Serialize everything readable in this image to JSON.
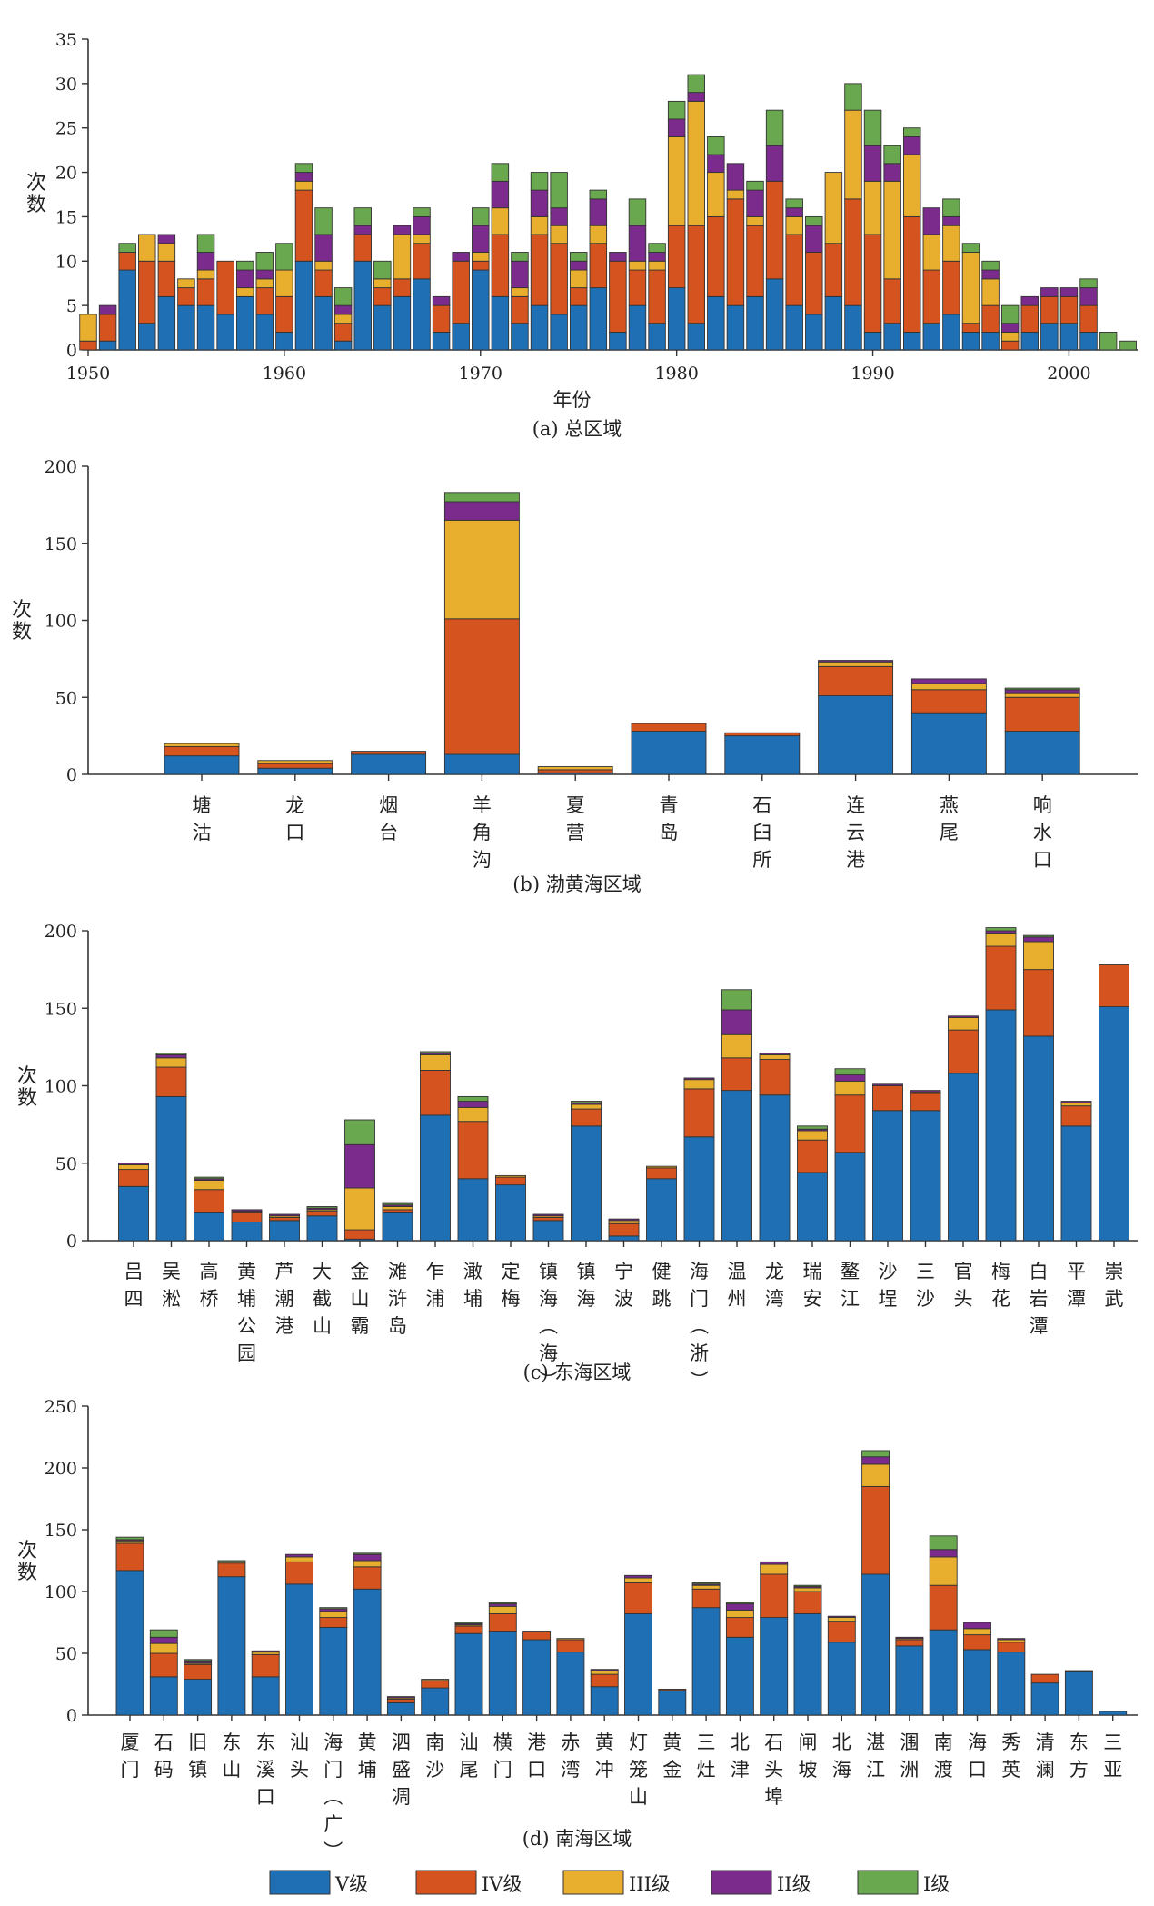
{
  "levels": [
    "V级",
    "IV级",
    "III级",
    "II级",
    "I级"
  ],
  "colors": {
    "V级": "#1f6fb5",
    "IV级": "#d4531e",
    "III级": "#e8ae2e",
    "II级": "#7a2b8c",
    "I级": "#6aa84f"
  },
  "chart_data": [
    {
      "type": "bar",
      "stacked": true,
      "title": "(a) 总区域",
      "xlabel": "年份",
      "ylabel": "次数",
      "ylim": [
        0,
        35
      ],
      "yticks": [
        0,
        5,
        10,
        15,
        20,
        25,
        30,
        35
      ],
      "xticks": [
        1950,
        1960,
        1970,
        1980,
        1990,
        2000
      ],
      "x": [
        1950,
        1951,
        1952,
        1953,
        1954,
        1955,
        1956,
        1957,
        1958,
        1959,
        1960,
        1961,
        1962,
        1963,
        1964,
        1965,
        1966,
        1967,
        1968,
        1969,
        1970,
        1971,
        1972,
        1973,
        1974,
        1975,
        1976,
        1977,
        1978,
        1979,
        1980,
        1981,
        1982,
        1983,
        1984,
        1985,
        1986,
        1987,
        1988,
        1989,
        1990,
        1991,
        1992,
        1993,
        1994,
        1995,
        1996,
        1997,
        1998,
        1999,
        2000,
        2001,
        2002,
        2003
      ],
      "series": [
        {
          "name": "V级",
          "values": [
            0,
            1,
            9,
            3,
            6,
            5,
            5,
            4,
            6,
            4,
            2,
            10,
            6,
            1,
            10,
            5,
            6,
            8,
            2,
            3,
            9,
            6,
            3,
            5,
            4,
            5,
            7,
            2,
            5,
            3,
            7,
            3,
            6,
            5,
            6,
            8,
            5,
            4,
            6,
            5,
            2,
            3,
            2,
            3,
            4,
            2,
            2,
            0,
            2,
            3,
            3,
            2,
            0,
            0
          ]
        },
        {
          "name": "IV级",
          "values": [
            1,
            3,
            2,
            7,
            4,
            2,
            3,
            6,
            0,
            3,
            4,
            8,
            3,
            2,
            3,
            2,
            2,
            4,
            3,
            7,
            1,
            7,
            3,
            8,
            8,
            2,
            5,
            8,
            4,
            6,
            7,
            11,
            9,
            12,
            8,
            11,
            8,
            7,
            6,
            12,
            11,
            5,
            13,
            6,
            6,
            1,
            3,
            1,
            3,
            3,
            3,
            3,
            0,
            0
          ]
        },
        {
          "name": "III级",
          "values": [
            3,
            0,
            0,
            3,
            2,
            1,
            1,
            0,
            1,
            1,
            3,
            1,
            1,
            1,
            0,
            1,
            5,
            1,
            0,
            0,
            1,
            3,
            1,
            2,
            2,
            2,
            2,
            0,
            1,
            1,
            10,
            14,
            5,
            1,
            1,
            0,
            2,
            0,
            8,
            10,
            6,
            11,
            7,
            4,
            4,
            8,
            3,
            1,
            0,
            0,
            0,
            0,
            0,
            0
          ]
        },
        {
          "name": "II级",
          "values": [
            0,
            1,
            0,
            0,
            1,
            0,
            2,
            0,
            2,
            1,
            0,
            1,
            3,
            1,
            1,
            0,
            1,
            2,
            1,
            1,
            3,
            3,
            3,
            3,
            2,
            1,
            3,
            1,
            4,
            1,
            2,
            1,
            2,
            3,
            3,
            4,
            1,
            3,
            0,
            0,
            4,
            2,
            2,
            3,
            1,
            0,
            1,
            1,
            1,
            1,
            1,
            2,
            0,
            0
          ]
        },
        {
          "name": "I级",
          "values": [
            0,
            0,
            1,
            0,
            0,
            0,
            2,
            0,
            1,
            2,
            3,
            1,
            3,
            2,
            2,
            2,
            0,
            1,
            0,
            0,
            2,
            2,
            1,
            2,
            4,
            1,
            1,
            0,
            3,
            1,
            2,
            2,
            2,
            0,
            1,
            4,
            1,
            1,
            0,
            3,
            4,
            2,
            1,
            0,
            2,
            1,
            1,
            2,
            0,
            0,
            0,
            1,
            2,
            1
          ]
        }
      ]
    },
    {
      "type": "bar",
      "stacked": true,
      "title": "(b) 渤黄海区域",
      "ylabel": "次数",
      "ylim": [
        0,
        200
      ],
      "yticks": [
        0,
        50,
        100,
        150,
        200
      ],
      "categories": [
        "塘沽",
        "龙口",
        "烟台",
        "羊角沟",
        "夏营",
        "青岛",
        "石臼所",
        "连云港",
        "燕尾",
        "响水口"
      ],
      "series": [
        {
          "name": "V级",
          "values": [
            12,
            4,
            13,
            13,
            1,
            28,
            25,
            51,
            40,
            28
          ]
        },
        {
          "name": "IV级",
          "values": [
            6,
            3,
            2,
            88,
            2,
            5,
            2,
            19,
            15,
            22
          ]
        },
        {
          "name": "III级",
          "values": [
            2,
            2,
            0,
            64,
            2,
            0,
            0,
            3,
            4,
            3
          ]
        },
        {
          "name": "II级",
          "values": [
            0,
            0,
            0,
            12,
            0,
            0,
            0,
            1,
            3,
            2
          ]
        },
        {
          "name": "I级",
          "values": [
            0,
            0,
            0,
            6,
            0,
            0,
            0,
            0,
            0,
            1
          ]
        }
      ]
    },
    {
      "type": "bar",
      "stacked": true,
      "title": "(c) 东海区域",
      "ylabel": "次数",
      "ylim": [
        0,
        200
      ],
      "yticks": [
        0,
        50,
        100,
        150,
        200
      ],
      "categories": [
        "吕四",
        "吴淞",
        "高桥",
        "黄埔公园",
        "芦潮港",
        "大截山",
        "金山霸",
        "滩浒岛",
        "乍浦",
        "澉埔",
        "定梅",
        "镇海(海)",
        "镇海",
        "宁波",
        "健跳",
        "海门(浙)",
        "温州",
        "龙湾",
        "瑞安",
        "鳌江",
        "沙埕",
        "三沙",
        "官头",
        "梅花",
        "白岩潭",
        "平潭",
        "崇武"
      ],
      "series": [
        {
          "name": "V级",
          "values": [
            35,
            93,
            18,
            12,
            13,
            16,
            1,
            18,
            81,
            40,
            36,
            13,
            74,
            3,
            40,
            67,
            97,
            94,
            44,
            57,
            84,
            84,
            108,
            149,
            132,
            74,
            151
          ]
        },
        {
          "name": "IV级",
          "values": [
            11,
            19,
            15,
            6,
            2,
            3,
            6,
            2,
            29,
            37,
            5,
            2,
            11,
            8,
            7,
            31,
            21,
            23,
            21,
            37,
            16,
            11,
            28,
            41,
            43,
            13,
            27
          ]
        },
        {
          "name": "III级",
          "values": [
            3,
            6,
            6,
            1,
            1,
            1,
            27,
            2,
            10,
            9,
            1,
            1,
            3,
            2,
            1,
            6,
            15,
            3,
            6,
            9,
            0,
            1,
            8,
            8,
            18,
            2,
            0
          ]
        },
        {
          "name": "II级",
          "values": [
            1,
            2,
            1,
            1,
            1,
            1,
            28,
            1,
            1,
            4,
            0,
            1,
            1,
            1,
            0,
            1,
            16,
            1,
            1,
            4,
            1,
            1,
            1,
            2,
            3,
            1,
            0
          ]
        },
        {
          "name": "I级",
          "values": [
            0,
            1,
            1,
            0,
            0,
            1,
            16,
            1,
            1,
            3,
            0,
            0,
            1,
            0,
            0,
            0,
            13,
            0,
            2,
            4,
            0,
            0,
            0,
            2,
            1,
            0,
            0
          ]
        }
      ]
    },
    {
      "type": "bar",
      "stacked": true,
      "title": "(d) 南海区域",
      "ylabel": "次数",
      "ylim": [
        0,
        250
      ],
      "yticks": [
        0,
        50,
        100,
        150,
        200,
        250
      ],
      "categories": [
        "厦门",
        "石码",
        "旧镇",
        "东山",
        "东溪口",
        "汕头",
        "海门(广)",
        "黄埔",
        "泗盛凋",
        "南沙",
        "汕尾",
        "横门",
        "港口",
        "赤湾",
        "黄冲",
        "灯笼山",
        "黄金",
        "三灶",
        "北津",
        "石头埠",
        "闸坡",
        "北海",
        "湛江",
        "涠洲",
        "南渡",
        "海口",
        "秀英",
        "清澜",
        "东方",
        "三亚"
      ],
      "series": [
        {
          "name": "V级",
          "values": [
            117,
            31,
            29,
            112,
            31,
            106,
            71,
            102,
            10,
            22,
            66,
            68,
            61,
            51,
            23,
            82,
            20,
            87,
            63,
            79,
            82,
            59,
            114,
            56,
            69,
            53,
            51,
            26,
            35,
            3
          ]
        },
        {
          "name": "IV级",
          "values": [
            22,
            19,
            12,
            11,
            18,
            18,
            8,
            18,
            3,
            6,
            6,
            14,
            7,
            10,
            10,
            25,
            1,
            15,
            16,
            35,
            18,
            17,
            71,
            5,
            36,
            12,
            8,
            7,
            1,
            0
          ]
        },
        {
          "name": "III级",
          "values": [
            2,
            8,
            1,
            1,
            2,
            4,
            5,
            5,
            1,
            1,
            1,
            6,
            0,
            1,
            3,
            4,
            0,
            3,
            6,
            8,
            3,
            3,
            18,
            1,
            23,
            5,
            2,
            0,
            0,
            0
          ]
        },
        {
          "name": "II级",
          "values": [
            1,
            5,
            2,
            0,
            1,
            2,
            2,
            5,
            1,
            0,
            1,
            2,
            0,
            0,
            1,
            2,
            0,
            1,
            5,
            2,
            1,
            1,
            6,
            1,
            6,
            5,
            1,
            0,
            0,
            0
          ]
        },
        {
          "name": "I级",
          "values": [
            2,
            6,
            1,
            1,
            0,
            0,
            1,
            1,
            0,
            0,
            1,
            1,
            0,
            0,
            0,
            0,
            0,
            1,
            1,
            0,
            1,
            0,
            5,
            0,
            11,
            0,
            0,
            0,
            0,
            0
          ]
        }
      ]
    }
  ]
}
